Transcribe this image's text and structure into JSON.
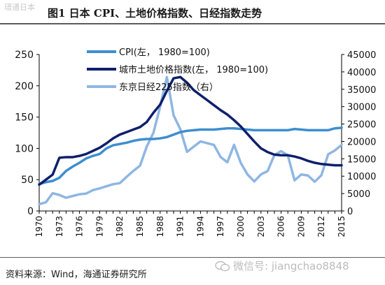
{
  "header": {
    "watermark": "瑨通日本",
    "title": "图1  日本 CPI、土地价格指数、日经指数走势"
  },
  "footer": {
    "source": "资料来源：Wind，海通证券研究所",
    "watermark": "微信号: jiangchao8848"
  },
  "colors": {
    "cpi": "#3d8ed0",
    "land": "#0f1f6b",
    "nikkei": "#8fb6e3",
    "axis": "#000000"
  },
  "chart_data": {
    "type": "line",
    "x": [
      1970,
      1971,
      1972,
      1973,
      1974,
      1975,
      1976,
      1977,
      1978,
      1979,
      1980,
      1981,
      1982,
      1983,
      1984,
      1985,
      1986,
      1987,
      1988,
      1989,
      1990,
      1991,
      1992,
      1993,
      1994,
      1995,
      1996,
      1997,
      1998,
      1999,
      2000,
      2001,
      2002,
      2003,
      2004,
      2005,
      2006,
      2007,
      2008,
      2009,
      2010,
      2011,
      2012,
      2013,
      2014,
      2015
    ],
    "x_tick_labels": [
      "1970",
      "1973",
      "1976",
      "1979",
      "1982",
      "1985",
      "1988",
      "1991",
      "1994",
      "1997",
      "2000",
      "2003",
      "2006",
      "2009",
      "2012",
      "2015"
    ],
    "y_left": {
      "ylim": [
        0,
        250
      ],
      "ticks": [
        "0",
        "50",
        "100",
        "150",
        "200",
        "250"
      ]
    },
    "y_right": {
      "ylim": [
        0,
        45000
      ],
      "ticks": [
        "0",
        "5000",
        "10000",
        "15000",
        "20000",
        "25000",
        "30000",
        "35000",
        "40000",
        "45000"
      ]
    },
    "legend_position": "top",
    "series": [
      {
        "name": "CPI(左， 1980=100)",
        "axis": "left",
        "values": [
          43,
          46,
          48,
          53,
          64,
          71,
          77,
          84,
          88,
          91,
          100,
          105,
          107,
          109,
          112,
          114,
          115,
          115,
          116,
          118,
          122,
          126,
          128,
          129,
          130,
          130,
          130,
          131,
          132,
          132,
          131,
          130,
          129,
          129,
          129,
          129,
          129,
          129,
          131,
          130,
          129,
          129,
          129,
          129,
          132,
          133
        ]
      },
      {
        "name": "城市土地价格指数(左， 1980=100)",
        "axis": "left",
        "values": [
          42,
          50,
          58,
          85,
          86,
          86,
          88,
          91,
          96,
          101,
          108,
          116,
          122,
          126,
          130,
          134,
          142,
          157,
          170,
          192,
          212,
          214,
          205,
          193,
          185,
          177,
          169,
          161,
          154,
          145,
          135,
          123,
          111,
          100,
          94,
          90,
          89,
          89,
          87,
          84,
          80,
          77,
          75,
          74,
          73,
          73
        ]
      },
      {
        "name": "东京日经225指数（右）",
        "axis": "right",
        "values": [
          1950,
          2500,
          5100,
          4600,
          3800,
          4300,
          4800,
          5000,
          6000,
          6500,
          7100,
          7700,
          8000,
          9800,
          11500,
          13000,
          18500,
          22500,
          30000,
          38500,
          27500,
          23500,
          17000,
          18500,
          20000,
          19500,
          19000,
          15500,
          14000,
          19000,
          13800,
          10500,
          8500,
          10500,
          11500,
          16100,
          17200,
          16000,
          8800,
          10500,
          10200,
          8400,
          10300,
          16300,
          17400,
          19000
        ]
      }
    ]
  }
}
